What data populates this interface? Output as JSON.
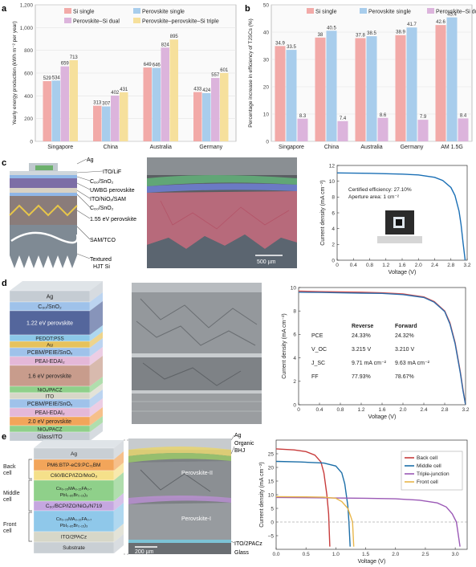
{
  "panels": {
    "a": "a",
    "b": "b",
    "c": "c",
    "d": "d",
    "e": "e"
  },
  "colors": {
    "si": "#f2aaa8",
    "pero": "#a8cdec",
    "psd": "#dcb4dc",
    "ppst": "#f6e09c"
  },
  "chart_data": [
    {
      "type": "bar",
      "ylabel": "Yearly energy production (kWh m⁻² per year)",
      "ylim": [
        0,
        1200
      ],
      "yticks": [
        "0",
        "200",
        "400",
        "600",
        "800",
        "1,000",
        "1,200"
      ],
      "categories": [
        "Singapore",
        "China",
        "Australia",
        "Germany"
      ],
      "series": [
        {
          "name": "Si single",
          "color": "#f2aaa8",
          "values": [
            529,
            313,
            649,
            433
          ]
        },
        {
          "name": "Perovskite single",
          "color": "#a8cdec",
          "values": [
            534,
            307,
            646,
            424
          ]
        },
        {
          "name": "Perovskite–Si dual",
          "color": "#dcb4dc",
          "values": [
            659,
            402,
            824,
            557
          ]
        },
        {
          "name": "Perovskite–perovskite–Si triple",
          "color": "#f6e09c",
          "values": [
            713,
            431,
            895,
            601
          ]
        }
      ]
    },
    {
      "type": "bar",
      "ylabel": "Percentage increase in efficiency of TJSCs (%)",
      "ylim": [
        0,
        50
      ],
      "yticks": [
        "0",
        "10",
        "20",
        "30",
        "40",
        "50"
      ],
      "categories": [
        "Singapore",
        "China",
        "Australia",
        "Germany",
        "AM 1.5G"
      ],
      "series": [
        {
          "name": "Si single",
          "color": "#f2aaa8",
          "values": [
            34.9,
            38,
            37.8,
            38.9,
            42.6
          ]
        },
        {
          "name": "Perovskite single",
          "color": "#a8cdec",
          "values": [
            33.5,
            40.5,
            38.5,
            41.7,
            45.4
          ]
        },
        {
          "name": "Perovskite–Si dual",
          "color": "#dcb4dc",
          "values": [
            8.3,
            7.4,
            8.6,
            7.9,
            8.4
          ]
        }
      ]
    },
    {
      "type": "line",
      "xlabel": "Voltage (V)",
      "ylabel": "Current density (mA cm⁻²)",
      "xlim": [
        0,
        3.2
      ],
      "ylim": [
        0,
        12
      ],
      "xticks": [
        "0",
        "0.4",
        "0.8",
        "1.2",
        "1.6",
        "2.0",
        "2.4",
        "2.8",
        "3.2"
      ],
      "yticks": [
        "0",
        "2",
        "4",
        "6",
        "8",
        "10",
        "12"
      ],
      "annotation": [
        "Certified efficiency: 27.10%",
        "Aperture area: 1 cm⁻²"
      ],
      "series": [
        {
          "color": "#1a6fb5",
          "x": [
            0,
            0.4,
            0.8,
            1.2,
            1.6,
            2.0,
            2.4,
            2.6,
            2.8,
            2.9,
            3.0,
            3.05,
            3.1,
            3.15
          ],
          "y": [
            11.05,
            11.02,
            11.0,
            10.95,
            10.9,
            10.8,
            10.5,
            10.1,
            9.2,
            8.2,
            6.2,
            4.5,
            2.2,
            0.0
          ]
        }
      ]
    },
    {
      "type": "line",
      "xlabel": "Voltage (V)",
      "ylabel": "Current density (mA cm⁻²)",
      "xlim": [
        0,
        3.2
      ],
      "ylim": [
        0,
        10
      ],
      "xticks": [
        "0",
        "0.4",
        "0.8",
        "1.2",
        "1.6",
        "2.0",
        "2.4",
        "2.8",
        "3.2"
      ],
      "yticks": [
        "0",
        "2",
        "4",
        "6",
        "8",
        "10"
      ],
      "table": {
        "header": [
          "",
          "Reverse",
          "Forward"
        ],
        "rows": [
          [
            "PCE",
            "24.33%",
            "24.32%"
          ],
          [
            "V_OC",
            "3.215 V",
            "3.210 V"
          ],
          [
            "J_SC",
            "9.71 mA cm⁻²",
            "9.63 mA cm⁻²"
          ],
          [
            "FF",
            "77.93%",
            "78.67%"
          ]
        ]
      },
      "series": [
        {
          "name": "Reverse",
          "color": "#d9534f",
          "x": [
            0,
            0.4,
            0.8,
            1.2,
            1.6,
            2.0,
            2.4,
            2.6,
            2.8,
            2.9,
            3.0,
            3.1,
            3.15,
            3.2
          ],
          "y": [
            9.7,
            9.65,
            9.62,
            9.6,
            9.55,
            9.45,
            9.2,
            8.8,
            8.0,
            7.0,
            5.3,
            2.8,
            1.3,
            0
          ]
        },
        {
          "name": "Forward",
          "color": "#2a6aaa",
          "x": [
            0,
            0.4,
            0.8,
            1.2,
            1.6,
            2.0,
            2.4,
            2.6,
            2.8,
            2.9,
            3.0,
            3.1,
            3.15,
            3.2
          ],
          "y": [
            9.6,
            9.58,
            9.55,
            9.52,
            9.5,
            9.4,
            9.15,
            8.75,
            7.95,
            6.9,
            5.2,
            2.7,
            1.2,
            0
          ]
        }
      ]
    },
    {
      "type": "line",
      "xlabel": "Voltage (V)",
      "ylabel": "Current density (mA cm⁻²)",
      "xlim": [
        0,
        3.2
      ],
      "ylim": [
        -10,
        30
      ],
      "xticks": [
        "0.0",
        "0.5",
        "1.0",
        "1.5",
        "2.0",
        "2.5",
        "3.0"
      ],
      "yticks": [
        "−5",
        "0",
        "5",
        "10",
        "15",
        "20",
        "25"
      ],
      "series": [
        {
          "name": "Back cell",
          "color": "#c83c3c",
          "x": [
            0,
            0.3,
            0.5,
            0.65,
            0.75,
            0.8,
            0.85,
            0.88,
            0.9
          ],
          "y": [
            26.8,
            26.4,
            25.8,
            24.5,
            22,
            18,
            10,
            3,
            -9
          ]
        },
        {
          "name": "Middle cell",
          "color": "#1d6fa8",
          "x": [
            0,
            0.4,
            0.8,
            1.0,
            1.1,
            1.15,
            1.2,
            1.22,
            1.24
          ],
          "y": [
            22.2,
            22.0,
            21.6,
            20.5,
            18,
            14,
            6,
            0,
            -9
          ]
        },
        {
          "name": "Triple-junction",
          "color": "#9b59b6",
          "x": [
            0,
            0.5,
            1.0,
            1.5,
            2.0,
            2.4,
            2.7,
            2.85,
            2.95,
            3.02,
            3.08
          ],
          "y": [
            9.0,
            8.9,
            8.8,
            8.7,
            8.5,
            8.0,
            7.0,
            5.5,
            3.0,
            0,
            -9
          ]
        },
        {
          "name": "Front cell",
          "color": "#e8b64a",
          "x": [
            0,
            0.5,
            0.8,
            1.0,
            1.1,
            1.2,
            1.25,
            1.28,
            1.3
          ],
          "y": [
            9.3,
            9.2,
            9.1,
            8.7,
            7.5,
            5,
            2,
            0,
            -9
          ]
        }
      ]
    }
  ],
  "stack_c": {
    "layers": [
      "Ag",
      "ITO/LiF",
      "C₆₀/SnO₂",
      "UWBG perovskite",
      "ITO/NiOₓ/SAM",
      "C₆₀/SnO₂",
      "1.55 eV perovskite",
      "SAM/TCO",
      "Textured HJT Si"
    ],
    "scale": "500 µm"
  },
  "stack_d": {
    "layers": [
      "Ag",
      "C₆₀/SnO₂",
      "1.22 eV perovskite",
      "PEDOT:PSS",
      "Au",
      "PCBM/PEIE/SnOₓ",
      "PEAI-EDAI₂",
      "1.6 eV perovskite",
      "NiOₓ/PACZ",
      "ITO",
      "PCBM/PEIE/SnOₓ",
      "PEAI-EDAI₂",
      "2.0 eV perovskite",
      "NiOₓ/PACZ",
      "Glass/ITO"
    ]
  },
  "stack_e": {
    "layers": [
      "Ag",
      "PM6:BTP-eC9:PC₇₁BM",
      "C60/BCP/IZO/MoO₃",
      "Cs₀.₀₅MA₀.₁₅FA₀.₇ PbI₀.₈₅Br₀.₁₅)₃",
      "C₆₀/BCP/IZO/NiOₓ/N719",
      "Cs₀.₀₅MA₀.₁₅FA₀.₇ PbI₀.₈₅Br₀.₁₅)₃",
      "ITO/2PACz",
      "Substrate"
    ],
    "side": [
      "Back cell",
      "Middle cell",
      "Front cell"
    ],
    "sem": [
      "Ag",
      "Organic BHJ",
      "Perovskite-II",
      "Perovskite-I",
      "ITO/2PACz",
      "Glass"
    ],
    "scale": "200 µm"
  }
}
